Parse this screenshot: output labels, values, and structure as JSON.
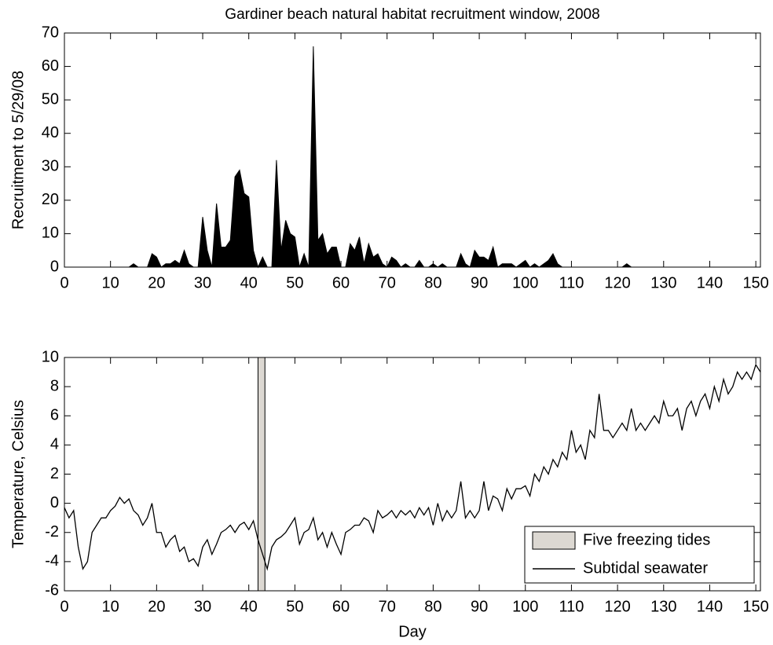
{
  "chart_data": [
    {
      "type": "area",
      "title": "Gardiner beach natural habitat recruitment window, 2008",
      "ylabel": "Recruitment to 5/29/08",
      "x": [
        0,
        1,
        2,
        3,
        4,
        5,
        6,
        7,
        8,
        9,
        10,
        11,
        12,
        13,
        14,
        15,
        16,
        17,
        18,
        19,
        20,
        21,
        22,
        23,
        24,
        25,
        26,
        27,
        28,
        29,
        30,
        31,
        32,
        33,
        34,
        35,
        36,
        37,
        38,
        39,
        40,
        41,
        42,
        43,
        44,
        45,
        46,
        47,
        48,
        49,
        50,
        51,
        52,
        53,
        54,
        55,
        56,
        57,
        58,
        59,
        60,
        61,
        62,
        63,
        64,
        65,
        66,
        67,
        68,
        69,
        70,
        71,
        72,
        73,
        74,
        75,
        76,
        77,
        78,
        79,
        80,
        81,
        82,
        83,
        84,
        85,
        86,
        87,
        88,
        89,
        90,
        91,
        92,
        93,
        94,
        95,
        96,
        97,
        98,
        99,
        100,
        101,
        102,
        103,
        104,
        105,
        106,
        107,
        108,
        109,
        110,
        111,
        112,
        113,
        114,
        115,
        116,
        117,
        118,
        119,
        120,
        121,
        122,
        123,
        124,
        125,
        126,
        127,
        128,
        129,
        130,
        131,
        132,
        133,
        134,
        135,
        136,
        137,
        138,
        139,
        140,
        141,
        142,
        143,
        144,
        145,
        146,
        147,
        148,
        149,
        150,
        151
      ],
      "values": [
        0,
        0,
        0,
        0,
        0,
        0,
        0,
        0,
        0,
        0,
        0,
        0,
        0,
        0,
        0,
        1,
        0,
        0,
        0,
        4,
        3,
        0,
        1,
        1,
        2,
        1,
        5,
        1,
        0,
        0,
        15,
        5,
        0,
        19,
        6,
        6,
        8,
        27,
        29,
        22,
        21,
        5,
        0,
        3,
        0,
        0,
        32,
        5,
        14,
        10,
        9,
        0,
        4,
        0,
        66,
        8,
        10,
        4,
        6,
        6,
        0,
        0,
        7,
        5,
        9,
        1,
        7,
        3,
        4,
        1,
        0,
        3,
        2,
        0,
        1,
        0,
        0,
        2,
        0,
        0,
        1,
        0,
        1,
        0,
        0,
        0,
        4,
        1,
        0,
        5,
        3,
        3,
        2,
        6,
        0,
        1,
        1,
        1,
        0,
        1,
        2,
        0,
        1,
        0,
        1,
        2,
        4,
        1,
        0,
        0,
        0,
        0,
        0,
        0,
        0,
        0,
        0,
        0,
        0,
        0,
        0,
        0,
        1,
        0,
        0,
        0,
        0,
        0,
        0,
        0,
        0,
        0,
        0,
        0,
        0,
        0,
        0,
        0,
        0,
        0,
        0,
        0,
        0,
        0,
        0,
        0,
        0,
        0,
        0,
        0,
        0,
        0
      ],
      "color": "#000000",
      "xlim": [
        0,
        151
      ],
      "ylim": [
        0,
        70
      ],
      "xticks": [
        0,
        10,
        20,
        30,
        40,
        50,
        60,
        70,
        80,
        90,
        100,
        110,
        120,
        130,
        140,
        150
      ],
      "yticks": [
        0,
        10,
        20,
        30,
        40,
        50,
        60,
        70
      ]
    },
    {
      "type": "line",
      "xlabel": "Day",
      "ylabel": "Temperature, Celsius",
      "x": [
        0,
        1,
        2,
        3,
        4,
        5,
        6,
        7,
        8,
        9,
        10,
        11,
        12,
        13,
        14,
        15,
        16,
        17,
        18,
        19,
        20,
        21,
        22,
        23,
        24,
        25,
        26,
        27,
        28,
        29,
        30,
        31,
        32,
        33,
        34,
        35,
        36,
        37,
        38,
        39,
        40,
        41,
        42,
        43,
        44,
        45,
        46,
        47,
        48,
        49,
        50,
        51,
        52,
        53,
        54,
        55,
        56,
        57,
        58,
        59,
        60,
        61,
        62,
        63,
        64,
        65,
        66,
        67,
        68,
        69,
        70,
        71,
        72,
        73,
        74,
        75,
        76,
        77,
        78,
        79,
        80,
        81,
        82,
        83,
        84,
        85,
        86,
        87,
        88,
        89,
        90,
        91,
        92,
        93,
        94,
        95,
        96,
        97,
        98,
        99,
        100,
        101,
        102,
        103,
        104,
        105,
        106,
        107,
        108,
        109,
        110,
        111,
        112,
        113,
        114,
        115,
        116,
        117,
        118,
        119,
        120,
        121,
        122,
        123,
        124,
        125,
        126,
        127,
        128,
        129,
        130,
        131,
        132,
        133,
        134,
        135,
        136,
        137,
        138,
        139,
        140,
        141,
        142,
        143,
        144,
        145,
        146,
        147,
        148,
        149,
        150,
        151
      ],
      "spans": [
        {
          "name": "Five freezing tides",
          "x": [
            42,
            43.5
          ],
          "color": "#dcd8d2"
        }
      ],
      "series": [
        {
          "name": "Subtidal seawater",
          "color": "#000000",
          "values": [
            -0.3,
            -1,
            -0.5,
            -3,
            -4.5,
            -4,
            -2,
            -1.5,
            -1,
            -1,
            -0.5,
            -0.2,
            0.4,
            0,
            0.3,
            -0.5,
            -0.8,
            -1.5,
            -1,
            0,
            -2,
            -2,
            -3,
            -2.5,
            -2.2,
            -3.3,
            -3,
            -4,
            -3.8,
            -4.3,
            -3,
            -2.5,
            -3.5,
            -2.8,
            -2,
            -1.8,
            -1.5,
            -2,
            -1.5,
            -1.3,
            -1.8,
            -1.2,
            -2.5,
            -3.5,
            -4.5,
            -3,
            -2.5,
            -2.3,
            -2,
            -1.5,
            -1,
            -2.8,
            -2,
            -1.8,
            -1,
            -2.5,
            -2,
            -3,
            -2,
            -2.8,
            -3.5,
            -2,
            -1.8,
            -1.5,
            -1.5,
            -1,
            -1.2,
            -2,
            -0.5,
            -1,
            -0.8,
            -0.5,
            -1,
            -0.5,
            -0.8,
            -0.5,
            -1,
            -0.3,
            -0.8,
            -0.3,
            -1.5,
            0,
            -1.2,
            -0.5,
            -1,
            -0.5,
            1.5,
            -1,
            -0.5,
            -1,
            -0.5,
            1.5,
            -0.5,
            0.5,
            0.3,
            -0.5,
            1,
            0.3,
            1,
            1,
            1.2,
            0.5,
            2,
            1.5,
            2.5,
            2,
            3,
            2.5,
            3.5,
            3,
            5,
            3.5,
            4,
            3,
            5,
            4.5,
            7.5,
            5,
            5,
            4.5,
            5,
            5.5,
            5,
            6.5,
            5,
            5.5,
            5,
            5.5,
            6,
            5.5,
            7,
            6,
            6,
            6.5,
            5,
            6.5,
            7,
            6,
            7,
            7.5,
            6.5,
            8,
            7,
            8.5,
            7.5,
            8,
            9,
            8.5,
            9,
            8.5,
            9.5,
            9
          ]
        }
      ],
      "legend": "lower right",
      "xlim": [
        0,
        151
      ],
      "ylim": [
        -6,
        10
      ],
      "xticks": [
        0,
        10,
        20,
        30,
        40,
        50,
        60,
        70,
        80,
        90,
        100,
        110,
        120,
        130,
        140,
        150
      ],
      "yticks": [
        -6,
        -4,
        -2,
        0,
        2,
        4,
        6,
        8,
        10
      ]
    }
  ]
}
